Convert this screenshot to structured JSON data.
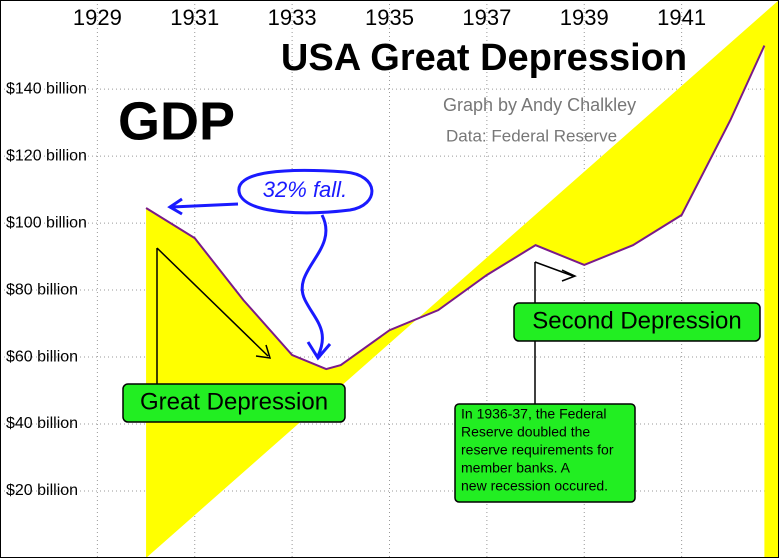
{
  "chart_data": {
    "type": "area",
    "title": "USA Great Depression",
    "subtitle": "GDP",
    "credit": "Graph by Andy Chalkley",
    "source": "Data: Federal Reserve",
    "fall_note": "32% fall.",
    "label_first": "Great Depression",
    "label_second": "Second Depression",
    "note_lines": [
      "In 1936-37, the Federal",
      "Reserve doubled the",
      "reserve requirements for",
      "member banks. A",
      "new recession occured."
    ],
    "x": [
      1930,
      1931,
      1932,
      1933,
      1933.7,
      1934,
      1935,
      1936,
      1937,
      1938,
      1939,
      1940,
      1941,
      1942,
      1942.7
    ],
    "values": [
      104.5,
      95.5,
      77,
      60.6,
      56.4,
      57.6,
      68,
      74,
      84.5,
      93.4,
      87.5,
      93.4,
      102.4,
      130.7,
      153
    ],
    "color": "#ffff00",
    "line_color": "#7a1a8a",
    "xlim": [
      1927,
      1943
    ],
    "xticks": [
      1929,
      1931,
      1933,
      1935,
      1937,
      1939,
      1941
    ],
    "ylim": [
      0,
      166.6
    ],
    "yticks": [
      {
        "value": 20,
        "label": "$20 billion"
      },
      {
        "value": 40,
        "label": "$40 billion"
      },
      {
        "value": 60,
        "label": "$60 billion"
      },
      {
        "value": 80,
        "label": "$80 billion"
      },
      {
        "value": 100,
        "label": "$100 billion"
      },
      {
        "value": 120,
        "label": "$120 billion"
      },
      {
        "value": 140,
        "label": "$140 billion"
      }
    ],
    "grid": true
  }
}
